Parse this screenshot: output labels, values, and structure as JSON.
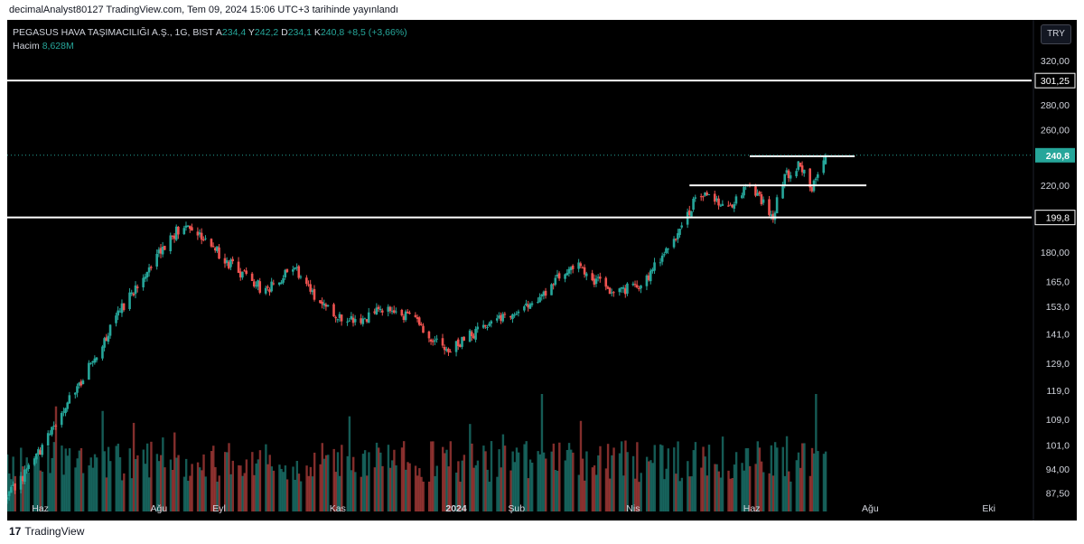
{
  "header": {
    "publish_text": "decimalAnalyst80127 TradingView.com, Tem 09, 2024 15:06 UTC+3 tarihinde yayınlandı"
  },
  "legend": {
    "symbol": "PEGASUS HAVA TAŞIMACILIĞI A.Ş., 1G, BIST",
    "open_label": "A",
    "open": "234,4",
    "high_label": "Y",
    "high": "242,2",
    "low_label": "D",
    "low": "234,1",
    "close_label": "K",
    "close": "240,8",
    "change": "+8,5 (+3,66%)",
    "volume_label": "Hacim",
    "volume": "8,628M"
  },
  "currency_button": "TRY",
  "footer": {
    "logo_mark": "17",
    "brand": "TradingView"
  },
  "colors": {
    "up": "#26a69a",
    "down": "#ef5350",
    "background": "#000000",
    "axis_text": "#d1d4dc",
    "level_line": "#ffffff",
    "price_tag": "#26a69a"
  },
  "chart_data": {
    "type": "candlestick",
    "scale": "log",
    "ylim": [
      85,
      335
    ],
    "price_ticks": [
      "320,00",
      "280,00",
      "260,00",
      "220,00",
      "180,00",
      "165,0",
      "153,0",
      "141,0",
      "129,0",
      "119,0",
      "109,0",
      "101,0",
      "94,00",
      "87,50"
    ],
    "price_tick_values": [
      320,
      280,
      260,
      220,
      180,
      165,
      153,
      141,
      129,
      119,
      109,
      101,
      94,
      87.5
    ],
    "time_ticks": [
      "Haz",
      "Ağu",
      "Eyl",
      "Kas",
      "2024",
      "Şub",
      "Nis",
      "Haz",
      "Ağu",
      "Eki"
    ],
    "time_tick_dates": [
      "2023-06-01",
      "2023-08-01",
      "2023-09-01",
      "2023-11-01",
      "2024-01-01",
      "2024-02-01",
      "2024-04-01",
      "2024-06-01",
      "2024-08-01",
      "2024-10-01"
    ],
    "date_range": [
      "2023-05-15",
      "2024-10-23"
    ],
    "last_bar_date": "2024-07-09",
    "price_anchors": [
      [
        "2023-05-15",
        86
      ],
      [
        "2023-06-01",
        99
      ],
      [
        "2023-06-20",
        120
      ],
      [
        "2023-07-05",
        140
      ],
      [
        "2023-07-25",
        170
      ],
      [
        "2023-08-15",
        198
      ],
      [
        "2023-09-05",
        175
      ],
      [
        "2023-09-25",
        160
      ],
      [
        "2023-10-10",
        172
      ],
      [
        "2023-10-25",
        152
      ],
      [
        "2023-11-10",
        146
      ],
      [
        "2023-11-25",
        152
      ],
      [
        "2023-12-10",
        147
      ],
      [
        "2023-12-28",
        133
      ],
      [
        "2024-01-20",
        148
      ],
      [
        "2024-02-10",
        153
      ],
      [
        "2024-03-01",
        174
      ],
      [
        "2024-03-20",
        160
      ],
      [
        "2024-04-05",
        163
      ],
      [
        "2024-04-20",
        182
      ],
      [
        "2024-05-05",
        215
      ],
      [
        "2024-05-20",
        205
      ],
      [
        "2024-05-30",
        220
      ],
      [
        "2024-06-12",
        200
      ],
      [
        "2024-06-18",
        226
      ],
      [
        "2024-06-25",
        235
      ],
      [
        "2024-07-02",
        218
      ],
      [
        "2024-07-09",
        240.8
      ]
    ],
    "volume_profile": "volume panel (bottom), colored by candle direction",
    "horizontal_levels": [
      {
        "value": 301.25,
        "label": "301,25",
        "from": "2023-05-15",
        "to": "axis"
      },
      {
        "value": 199.8,
        "label": "199,8",
        "from": "2023-05-15",
        "to": "axis"
      },
      {
        "value": 220,
        "from": "2024-04-30",
        "to": "2024-07-30"
      },
      {
        "value": 240.1,
        "from": "2024-05-31",
        "to": "2024-07-24"
      }
    ],
    "last_price": {
      "value": 240.8,
      "label": "240,8"
    }
  }
}
